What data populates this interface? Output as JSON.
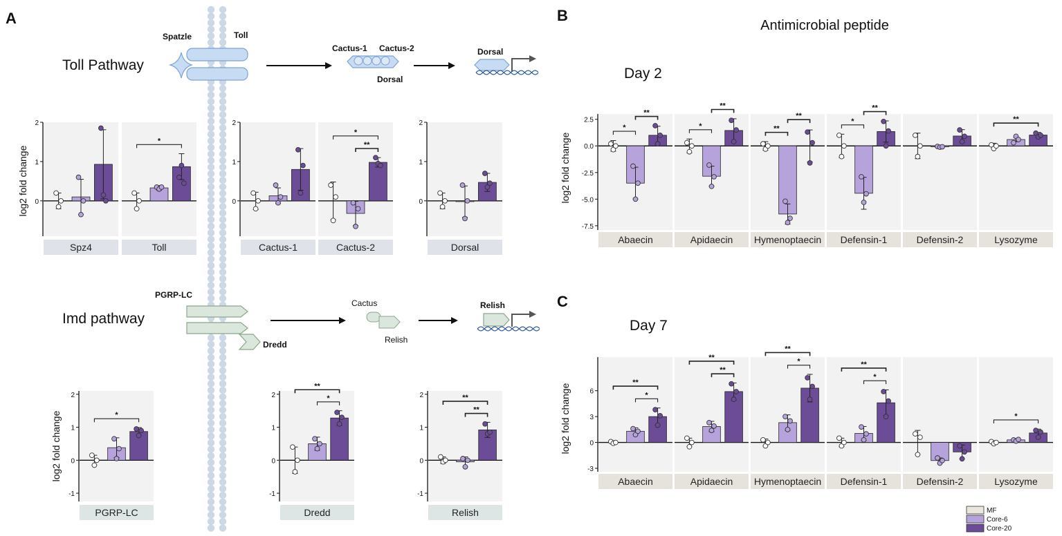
{
  "panel_labels": {
    "a": "A",
    "b": "B",
    "c": "C"
  },
  "diagram": {
    "toll": {
      "title": "Toll Pathway",
      "spatzle": "Spatzle",
      "toll": "Toll",
      "cactus1": "Cactus-1",
      "cactus2": "Cactus-2",
      "dorsal_complex": "Dorsal",
      "dorsal": "Dorsal"
    },
    "imd": {
      "title": "Imd pathway",
      "pgrp": "PGRP-LC",
      "dredd": "Dredd",
      "cactus": "Cactus",
      "relish_complex": "Relish",
      "relish": "Relish"
    }
  },
  "labels": {
    "ylabel": "log2 fold change",
    "amp_title": "Antimicrobial peptide",
    "day2": "Day 2",
    "day7": "Day 7"
  },
  "legend": [
    {
      "label": "MF",
      "color": "#ebe6dd"
    },
    {
      "label": "Core-6",
      "color": "#b7a3dc"
    },
    {
      "label": "Core-20",
      "color": "#6c4c97"
    }
  ],
  "chart_data": [
    {
      "id": "toll_row",
      "type": "bar",
      "ylabel": "log2 fold change",
      "ylim": [
        -0.9,
        2.0
      ],
      "yticks": [
        0,
        1,
        2
      ],
      "groups": [
        "MF",
        "Core-6",
        "Core-20"
      ],
      "panels": [
        {
          "label": "Spz4",
          "values": [
            0,
            0.1,
            0.93
          ],
          "errors": [
            0.2,
            0.45,
            0.88
          ],
          "points": [
            [
              0.2,
              -0.15,
              0.0
            ],
            [
              0.6,
              -0.35,
              0.0
            ],
            [
              1.85,
              0.15,
              0.0
            ]
          ],
          "brackets": []
        },
        {
          "label": "Toll",
          "values": [
            0,
            0.33,
            0.87
          ],
          "errors": [
            0.2,
            0.06,
            0.33
          ],
          "points": [
            [
              0.2,
              -0.2,
              0.0
            ],
            [
              0.35,
              0.3,
              0.35
            ],
            [
              0.6,
              0.9,
              0.45
            ]
          ],
          "brackets": [
            {
              "from": 0,
              "to": 2,
              "label": "*"
            }
          ]
        },
        {
          "label": "Cactus-1",
          "values": [
            0,
            0.13,
            0.8
          ],
          "errors": [
            0.22,
            0.2,
            0.53
          ],
          "points": [
            [
              0.2,
              -0.2,
              0.0
            ],
            [
              0.4,
              -0.05,
              0.1
            ],
            [
              1.3,
              0.2,
              0.9
            ]
          ],
          "brackets": []
        },
        {
          "label": "Cactus-2",
          "values": [
            0,
            -0.32,
            0.98
          ],
          "errors": [
            0.48,
            0.31,
            0.12
          ],
          "points": [
            [
              0.4,
              -0.5,
              0.1
            ],
            [
              -0.05,
              -0.65,
              -0.2
            ],
            [
              1.1,
              0.95,
              0.9
            ]
          ],
          "brackets": [
            {
              "from": 0,
              "to": 2,
              "label": "*"
            },
            {
              "from": 1,
              "to": 2,
              "label": "**"
            }
          ]
        },
        {
          "label": "Dorsal",
          "values": [
            0,
            -0.02,
            0.47
          ],
          "errors": [
            0.2,
            0.4,
            0.23
          ],
          "points": [
            [
              0.2,
              -0.15,
              0.0
            ],
            [
              0.4,
              -0.45,
              0.0
            ],
            [
              0.7,
              0.35,
              0.45
            ]
          ],
          "brackets": []
        }
      ]
    },
    {
      "id": "imd_row",
      "type": "bar",
      "ylabel": "log2 fold change",
      "ylim": [
        -1.25,
        2.1
      ],
      "yticks": [
        -1,
        0,
        1,
        2
      ],
      "groups": [
        "MF",
        "Core-6",
        "Core-20"
      ],
      "panels": [
        {
          "label": "PGRP-LC",
          "values": [
            0,
            0.38,
            0.87
          ],
          "errors": [
            0.15,
            0.3,
            0.12
          ],
          "points": [
            [
              0.15,
              -0.15,
              0.0
            ],
            [
              0.65,
              0.05,
              0.35
            ],
            [
              0.95,
              0.75,
              0.9
            ]
          ],
          "brackets": [
            {
              "from": 0,
              "to": 2,
              "label": "*"
            }
          ]
        },
        {
          "label": "Dredd",
          "values": [
            0,
            0.5,
            1.28
          ],
          "errors": [
            0.4,
            0.2,
            0.22
          ],
          "points": [
            [
              0.4,
              -0.35,
              0.0
            ],
            [
              0.65,
              0.35,
              0.5
            ],
            [
              1.45,
              1.1,
              1.3
            ]
          ],
          "brackets": [
            {
              "from": 0,
              "to": 2,
              "label": "**"
            },
            {
              "from": 1,
              "to": 2,
              "label": "*"
            }
          ]
        },
        {
          "label": "Relish",
          "values": [
            0,
            -0.05,
            0.92
          ],
          "errors": [
            0.1,
            0.15,
            0.23
          ],
          "points": [
            [
              0.1,
              -0.05,
              0.0
            ],
            [
              0.05,
              -0.2,
              0.0
            ],
            [
              1.1,
              0.8,
              0.85
            ]
          ],
          "brackets": [
            {
              "from": 0,
              "to": 2,
              "label": "**"
            },
            {
              "from": 1,
              "to": 2,
              "label": "**"
            }
          ]
        }
      ]
    },
    {
      "id": "day2",
      "type": "bar",
      "title": "Day 2",
      "ylabel": "log2 fold change",
      "ylim": [
        -7.9,
        3.0
      ],
      "yticks": [
        2.5,
        0.0,
        -2.5,
        -5.0,
        -7.5
      ],
      "ytick_labels": [
        "2.5",
        "0.0",
        "-2.5",
        "-5.0",
        "-7.5"
      ],
      "groups": [
        "MF",
        "Core-6",
        "Core-20"
      ],
      "panels": [
        {
          "label": "Abaecin",
          "values": [
            0,
            -3.5,
            1.0
          ],
          "errors": [
            0.5,
            1.5,
            0.85
          ],
          "points": [
            [
              0.2,
              -0.35,
              0.0
            ],
            [
              -1.9,
              -5.0,
              -3.5
            ],
            [
              1.9,
              0.2,
              1.0
            ]
          ],
          "brackets": [
            {
              "from": 0,
              "to": 1,
              "label": "*"
            },
            {
              "from": 1,
              "to": 2,
              "label": "**"
            }
          ]
        },
        {
          "label": "Apidaecin",
          "values": [
            0,
            -2.85,
            1.45
          ],
          "errors": [
            0.65,
            0.95,
            1.1
          ],
          "points": [
            [
              0.3,
              -0.55,
              0.0
            ],
            [
              -1.8,
              -3.8,
              -2.9
            ],
            [
              2.4,
              0.4,
              1.5
            ]
          ],
          "brackets": [
            {
              "from": 0,
              "to": 1,
              "label": "*"
            },
            {
              "from": 1,
              "to": 2,
              "label": "**"
            }
          ]
        },
        {
          "label": "Hymenoptaecin",
          "values": [
            0,
            -6.4,
            0.0
          ],
          "errors": [
            0.4,
            0.95,
            1.5
          ],
          "points": [
            [
              0.2,
              -0.3,
              0.0
            ],
            [
              -5.2,
              -7.2,
              -6.8
            ],
            [
              1.3,
              -1.6,
              0.3
            ]
          ],
          "brackets": [
            {
              "from": 0,
              "to": 1,
              "label": "**"
            },
            {
              "from": 1,
              "to": 2,
              "label": "**"
            }
          ]
        },
        {
          "label": "Defensin-1",
          "values": [
            0,
            -4.45,
            1.35
          ],
          "errors": [
            1.1,
            1.5,
            1.0
          ],
          "points": [
            [
              1.0,
              -1.0,
              0.0
            ],
            [
              -2.9,
              -5.3,
              -4.5
            ],
            [
              2.3,
              0.0,
              1.4
            ]
          ],
          "brackets": [
            {
              "from": 0,
              "to": 1,
              "label": "*"
            },
            {
              "from": 1,
              "to": 2,
              "label": "**"
            }
          ]
        },
        {
          "label": "Defensin-2",
          "values": [
            0,
            -0.08,
            0.93
          ],
          "errors": [
            1.2,
            0.15,
            0.6
          ],
          "points": [
            [
              1.0,
              -1.0,
              0.0
            ],
            [
              -0.05,
              -0.12,
              -0.08
            ],
            [
              1.5,
              0.4,
              0.9
            ]
          ],
          "brackets": []
        },
        {
          "label": "Lysozyme",
          "values": [
            0,
            0.6,
            1.02
          ],
          "errors": [
            0.25,
            0.2,
            0.25
          ],
          "points": [
            [
              0.1,
              -0.25,
              0.0
            ],
            [
              0.3,
              0.9,
              0.6
            ],
            [
              1.2,
              0.85,
              1.0
            ]
          ],
          "brackets": [
            {
              "from": 0,
              "to": 2,
              "label": "**"
            }
          ]
        }
      ]
    },
    {
      "id": "day7",
      "type": "bar",
      "title": "Day 7",
      "ylabel": "log2 fold change",
      "ylim": [
        -3.4,
        9.9
      ],
      "yticks": [
        6,
        3,
        0,
        -3
      ],
      "ytick_labels": [
        "6",
        "3",
        "0",
        "-3"
      ],
      "groups": [
        "MF",
        "Core-6",
        "Core-20"
      ],
      "panels": [
        {
          "label": "Abaecin",
          "values": [
            0,
            1.3,
            3.0
          ],
          "errors": [
            0.2,
            0.4,
            1.0
          ],
          "points": [
            [
              0.1,
              -0.1,
              0.0
            ],
            [
              1.6,
              0.9,
              1.3
            ],
            [
              3.8,
              2.0,
              3.1
            ]
          ],
          "brackets": [
            {
              "from": 0,
              "to": 2,
              "label": "**"
            },
            {
              "from": 1,
              "to": 2,
              "label": "*"
            }
          ]
        },
        {
          "label": "Apidaecin",
          "values": [
            0,
            1.85,
            5.9
          ],
          "errors": [
            0.5,
            0.6,
            1.0
          ],
          "points": [
            [
              0.5,
              -0.5,
              0.0
            ],
            [
              2.3,
              1.4,
              1.9
            ],
            [
              6.8,
              5.0,
              5.9
            ]
          ],
          "brackets": [
            {
              "from": 0,
              "to": 2,
              "label": "**"
            },
            {
              "from": 1,
              "to": 2,
              "label": "**"
            }
          ]
        },
        {
          "label": "Hymenoptaecin",
          "values": [
            0,
            2.3,
            6.3
          ],
          "errors": [
            0.4,
            0.9,
            1.6
          ],
          "points": [
            [
              0.3,
              -0.4,
              0.0
            ],
            [
              3.0,
              1.5,
              2.5
            ],
            [
              7.5,
              5.0,
              6.5
            ]
          ],
          "brackets": [
            {
              "from": 0,
              "to": 2,
              "label": "**"
            },
            {
              "from": 1,
              "to": 2,
              "label": "*"
            }
          ]
        },
        {
          "label": "Defensin-1",
          "values": [
            0,
            1.05,
            4.6
          ],
          "errors": [
            0.5,
            0.8,
            1.5
          ],
          "points": [
            [
              0.5,
              -0.4,
              0.0
            ],
            [
              1.8,
              0.3,
              1.0
            ],
            [
              5.9,
              3.0,
              4.8
            ]
          ],
          "brackets": [
            {
              "from": 0,
              "to": 2,
              "label": "**"
            },
            {
              "from": 1,
              "to": 2,
              "label": "*"
            }
          ]
        },
        {
          "label": "Defensin-2",
          "values": [
            0,
            -2.1,
            -1.1
          ],
          "errors": [
            1.4,
            0.3,
            0.8
          ],
          "points": [
            [
              1.0,
              -1.4,
              0.6
            ],
            [
              -1.8,
              -2.4,
              -2.1
            ],
            [
              -0.4,
              -1.9,
              -1.1
            ]
          ],
          "brackets": []
        },
        {
          "label": "Lysozyme",
          "values": [
            0,
            0.3,
            1.1
          ],
          "errors": [
            0.2,
            0.15,
            0.45
          ],
          "points": [
            [
              0.1,
              -0.15,
              0.0
            ],
            [
              0.3,
              0.15,
              0.35
            ],
            [
              1.4,
              0.6,
              1.2
            ]
          ],
          "brackets": [
            {
              "from": 0,
              "to": 2,
              "label": "*"
            }
          ]
        }
      ]
    }
  ]
}
